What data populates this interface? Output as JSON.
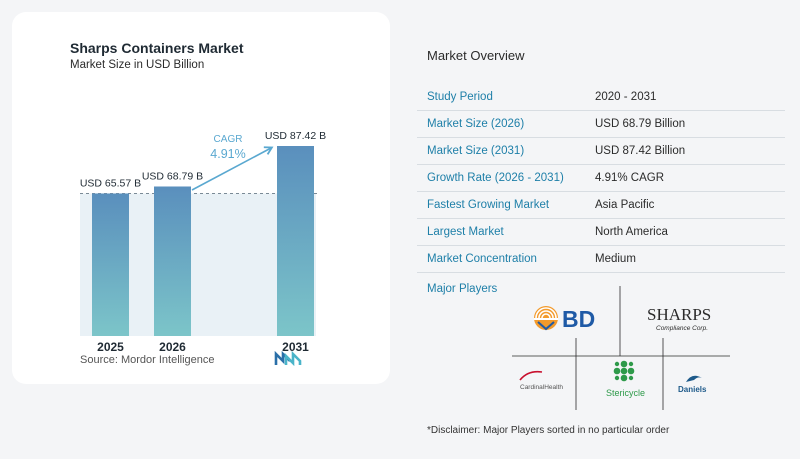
{
  "chart_data": {
    "type": "bar",
    "title": "Sharps Containers Market",
    "subtitle": "Market Size in USD Billion",
    "categories": [
      "2025",
      "2026",
      "2031"
    ],
    "values": [
      65.57,
      68.79,
      87.42
    ],
    "data_labels": [
      "USD 65.57 B",
      "USD 68.79 B",
      "USD 87.42 B"
    ],
    "cagr_label": "CAGR",
    "cagr_value": "4.91%",
    "ylim": [
      0,
      87.42
    ],
    "grid": false,
    "colors": {
      "bar_top": "#5a8fbd",
      "bar_bottom": "#7cc5c9",
      "arrow": "#5aa8d0",
      "baseline_fill": "#e9f1f6"
    }
  },
  "source": "Source:  Mordor Intelligence",
  "overview": {
    "title": "Market Overview",
    "rows": [
      {
        "label": "Study Period",
        "value": "2020 - 2031"
      },
      {
        "label": "Market Size (2026)",
        "value": "USD 68.79 Billion"
      },
      {
        "label": "Market Size (2031)",
        "value": "USD 87.42 Billion"
      },
      {
        "label": "Growth Rate (2026 - 2031)",
        "value": "4.91% CAGR"
      },
      {
        "label": "Fastest Growing Market",
        "value": "Asia Pacific"
      },
      {
        "label": "Largest Market",
        "value": "North America"
      },
      {
        "label": "Market Concentration",
        "value": "Medium"
      }
    ]
  },
  "players": {
    "title": "Major Players",
    "logos": {
      "bd": "BD",
      "sharps": "SHARPS",
      "sharps_sub": "Compliance Corp.",
      "cardinal": "CardinalHealth",
      "stericycle": "Stericycle",
      "daniels": "Daniels"
    }
  },
  "disclaimer": "*Disclaimer: Major Players sorted in no particular order"
}
